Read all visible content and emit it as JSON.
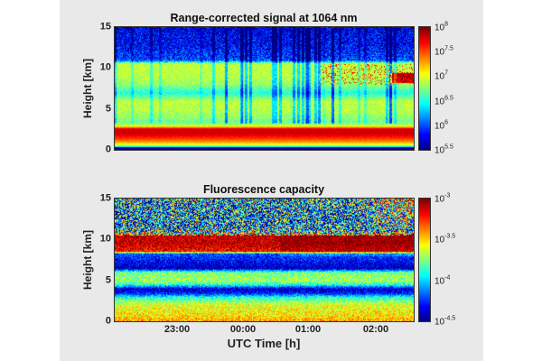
{
  "chart_data": [
    {
      "type": "heatmap",
      "title": "Range-corrected signal at 1064 nm",
      "ylabel": "Height [km]",
      "xlabel": "",
      "ylim": [
        0,
        15
      ],
      "yticks": [
        "0",
        "5",
        "10",
        "15"
      ],
      "xlim": [
        "22:02",
        "02:35"
      ],
      "colorbar": {
        "scale": "log10",
        "range": [
          5.5,
          8
        ],
        "ticks": [
          {
            "base": "10",
            "exp": "8"
          },
          {
            "base": "10",
            "exp": "7.5"
          },
          {
            "base": "10",
            "exp": "7"
          },
          {
            "base": "10",
            "exp": "6.5"
          },
          {
            "base": "10",
            "exp": "6"
          },
          {
            "base": "10",
            "exp": "5.5"
          }
        ]
      },
      "colormap": "jet",
      "profile": {
        "height_km": [
          0,
          0.3,
          0.5,
          1,
          1.5,
          2,
          2.6,
          3,
          3.5,
          4,
          5,
          6,
          7,
          8,
          9,
          10,
          10.6,
          11,
          12,
          13,
          14,
          15
        ],
        "log10_value": [
          5.5,
          5.6,
          6.8,
          7.3,
          7.6,
          7.8,
          7.8,
          6.9,
          6.7,
          6.8,
          6.9,
          6.9,
          6.5,
          6.8,
          6.9,
          6.9,
          6.9,
          6.0,
          5.9,
          5.8,
          5.8,
          5.7
        ]
      }
    },
    {
      "type": "heatmap",
      "title": "Fluorescence capacity",
      "ylabel": "Height [km]",
      "xlabel": "UTC Time [h]",
      "ylim": [
        0,
        15
      ],
      "yticks": [
        "0",
        "5",
        "10",
        "15"
      ],
      "xlim": [
        "22:02",
        "02:35"
      ],
      "xticks": [
        "23:00",
        "00:00",
        "01:00",
        "02:00"
      ],
      "colorbar": {
        "scale": "log10",
        "range": [
          -4.5,
          -3
        ],
        "ticks": [
          {
            "base": "10",
            "exp": "-3"
          },
          {
            "base": "10",
            "exp": "-3.5"
          },
          {
            "base": "10",
            "exp": "-4"
          },
          {
            "base": "10",
            "exp": "-4.5"
          }
        ]
      },
      "colormap": "jet",
      "profile": {
        "height_km": [
          0,
          0.5,
          1,
          2,
          3,
          3.5,
          4,
          4.5,
          5,
          6,
          6.5,
          7.5,
          8.3,
          8.6,
          9.5,
          10.5,
          11,
          13,
          15
        ],
        "log10_value": [
          -3.4,
          -3.5,
          -3.55,
          -3.6,
          -3.9,
          -4.3,
          -4.4,
          -3.9,
          -3.7,
          -3.75,
          -4.4,
          -4.3,
          -4.2,
          -3.2,
          -3.1,
          -3.1,
          -4.0,
          -4.1,
          -4.0
        ]
      }
    }
  ]
}
